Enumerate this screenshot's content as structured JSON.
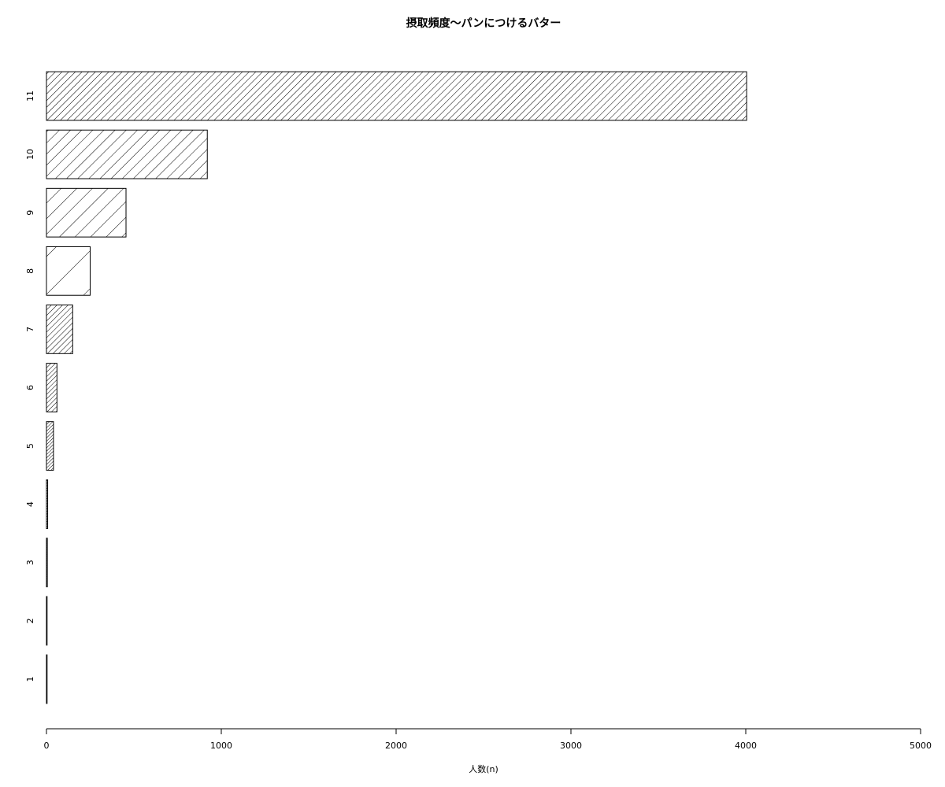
{
  "chart_data": {
    "type": "bar",
    "orientation": "horizontal",
    "title": "摂取頻度〜パンにつけるバター",
    "xlabel": "人数(n)",
    "ylabel": "",
    "categories": [
      "1",
      "2",
      "3",
      "4",
      "5",
      "6",
      "7",
      "8",
      "9",
      "10",
      "11"
    ],
    "values": [
      2,
      3,
      5,
      7,
      40,
      60,
      150,
      250,
      455,
      920,
      4005
    ],
    "xlim": [
      0,
      5000
    ],
    "xticks": [
      0,
      1000,
      2000,
      3000,
      4000,
      5000
    ],
    "fill": "hatched",
    "colors": {
      "stroke": "#000000",
      "background": "#ffffff"
    }
  }
}
